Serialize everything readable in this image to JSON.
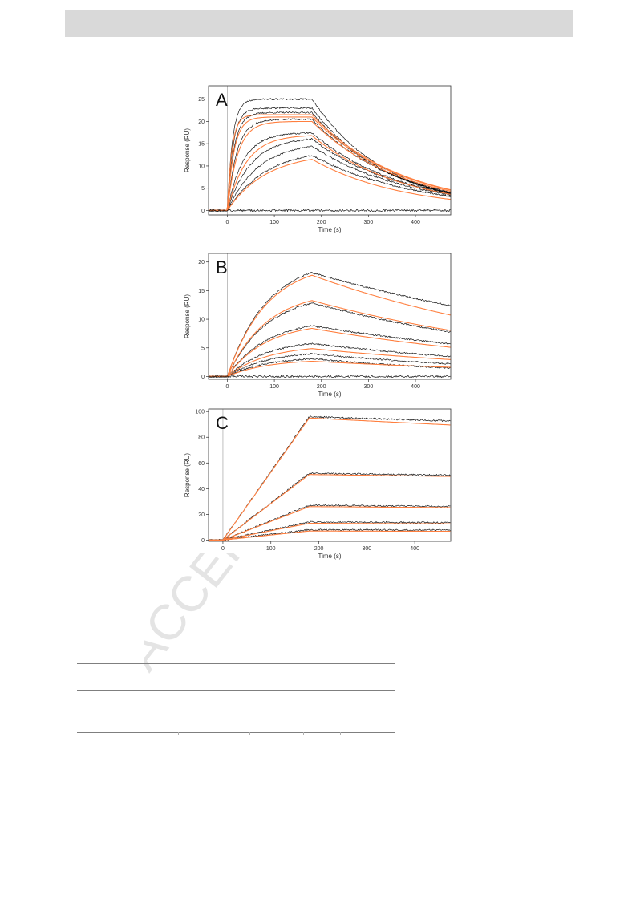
{
  "page": {
    "watermark_text": "ACCEPTED"
  },
  "chart_data": [
    {
      "type": "line",
      "panel_label": "A",
      "xlabel": "Time (s)",
      "ylabel": "Response (RU)",
      "xlim": [
        -40,
        475
      ],
      "ylim": [
        -1,
        28
      ],
      "xticks": [
        0,
        100,
        200,
        300,
        400
      ],
      "yticks": [
        0,
        5,
        10,
        15,
        20,
        25
      ],
      "grid": false,
      "association_end": 180,
      "series": [
        {
          "role": "observed",
          "color": "#000000",
          "plateau": 25,
          "kon_rate": 0.09,
          "koff_rate": 0.0063
        },
        {
          "role": "observed",
          "color": "#000000",
          "plateau": 23,
          "kon_rate": 0.08,
          "koff_rate": 0.0061
        },
        {
          "role": "observed",
          "color": "#000000",
          "plateau": 22,
          "kon_rate": 0.07,
          "koff_rate": 0.0059
        },
        {
          "role": "observed",
          "color": "#000000",
          "plateau": 20.5,
          "kon_rate": 0.05,
          "koff_rate": 0.0055
        },
        {
          "role": "observed",
          "color": "#000000",
          "plateau": 17.5,
          "kon_rate": 0.03,
          "koff_rate": 0.0052
        },
        {
          "role": "observed",
          "color": "#000000",
          "plateau": 16.5,
          "kon_rate": 0.02,
          "koff_rate": 0.005
        },
        {
          "role": "observed",
          "color": "#000000",
          "plateau": 15.5,
          "kon_rate": 0.015,
          "koff_rate": 0.0048
        },
        {
          "role": "observed",
          "color": "#000000",
          "plateau": 14,
          "kon_rate": 0.012,
          "koff_rate": 0.0046
        },
        {
          "role": "fit",
          "color": "#ff7f3f",
          "plateau": 21.5,
          "kon_rate": 0.1,
          "koff_rate": 0.0052
        },
        {
          "role": "fit",
          "color": "#ff7f3f",
          "plateau": 21,
          "kon_rate": 0.07,
          "koff_rate": 0.0052
        },
        {
          "role": "fit",
          "color": "#ff7f3f",
          "plateau": 20,
          "kon_rate": 0.045,
          "koff_rate": 0.0052
        },
        {
          "role": "fit",
          "color": "#ff7f3f",
          "plateau": 17,
          "kon_rate": 0.025,
          "koff_rate": 0.0052
        },
        {
          "role": "fit",
          "color": "#ff7f3f",
          "plateau": 13,
          "kon_rate": 0.012,
          "koff_rate": 0.0052
        },
        {
          "role": "baseline",
          "color": "#000000",
          "plateau": 0,
          "kon_rate": 0.05,
          "koff_rate": 0.01
        }
      ]
    },
    {
      "type": "line",
      "panel_label": "B",
      "xlabel": "Time (s)",
      "ylabel": "Response (RU)",
      "xlim": [
        -40,
        475
      ],
      "ylim": [
        -0.5,
        21.5
      ],
      "xticks": [
        0,
        100,
        200,
        300,
        400
      ],
      "yticks": [
        0,
        5,
        10,
        15,
        20
      ],
      "grid": false,
      "association_end": 180,
      "series": [
        {
          "role": "observed",
          "color": "#000000",
          "plateau": 20.5,
          "kon_rate": 0.012,
          "koff_rate": 0.0013
        },
        {
          "role": "observed",
          "color": "#000000",
          "plateau": 14.5,
          "kon_rate": 0.012,
          "koff_rate": 0.0017
        },
        {
          "role": "observed",
          "color": "#000000",
          "plateau": 10,
          "kon_rate": 0.012,
          "koff_rate": 0.0015
        },
        {
          "role": "observed",
          "color": "#000000",
          "plateau": 6.5,
          "kon_rate": 0.012,
          "koff_rate": 0.0017
        },
        {
          "role": "observed",
          "color": "#000000",
          "plateau": 4.5,
          "kon_rate": 0.012,
          "koff_rate": 0.002
        },
        {
          "role": "observed",
          "color": "#000000",
          "plateau": 3.5,
          "kon_rate": 0.012,
          "koff_rate": 0.0025
        },
        {
          "role": "fit",
          "color": "#ff7f3f",
          "plateau": 20,
          "kon_rate": 0.012,
          "koff_rate": 0.0017
        },
        {
          "role": "fit",
          "color": "#ff7f3f",
          "plateau": 15,
          "kon_rate": 0.012,
          "koff_rate": 0.0017
        },
        {
          "role": "fit",
          "color": "#ff7f3f",
          "plateau": 9.5,
          "kon_rate": 0.012,
          "koff_rate": 0.0017
        },
        {
          "role": "fit",
          "color": "#ff7f3f",
          "plateau": 5.5,
          "kon_rate": 0.012,
          "koff_rate": 0.0017
        },
        {
          "role": "fit",
          "color": "#ff7f3f",
          "plateau": 3,
          "kon_rate": 0.012,
          "koff_rate": 0.0017
        },
        {
          "role": "baseline",
          "color": "#000000",
          "plateau": 0,
          "kon_rate": 0.05,
          "koff_rate": 0.01
        }
      ]
    },
    {
      "type": "line",
      "panel_label": "C",
      "xlabel": "Time (s)",
      "ylabel": "Response (RU)",
      "xlim": [
        -30,
        475
      ],
      "ylim": [
        -1,
        102
      ],
      "xticks": [
        0,
        100,
        200,
        300,
        400
      ],
      "yticks": [
        0,
        20,
        40,
        60,
        80,
        100
      ],
      "grid": false,
      "association_end": 180,
      "series": [
        {
          "role": "observed",
          "color": "#000000",
          "plateau": 96,
          "kon_rate": 0.0,
          "koff_rate": 0.00012
        },
        {
          "role": "observed",
          "color": "#000000",
          "plateau": 52,
          "kon_rate": 0.0,
          "koff_rate": 0.0001
        },
        {
          "role": "observed",
          "color": "#000000",
          "plateau": 27,
          "kon_rate": 0.0,
          "koff_rate": 0.0001
        },
        {
          "role": "observed",
          "color": "#000000",
          "plateau": 14,
          "kon_rate": 0.0,
          "koff_rate": 0.0001
        },
        {
          "role": "observed",
          "color": "#000000",
          "plateau": 8,
          "kon_rate": 0.0,
          "koff_rate": 0.0001
        },
        {
          "role": "fit",
          "color": "#ff7f3f",
          "plateau": 95,
          "kon_rate": 0.0,
          "koff_rate": 0.0002
        },
        {
          "role": "fit",
          "color": "#ff7f3f",
          "plateau": 51,
          "kon_rate": 0.0,
          "koff_rate": 0.0001
        },
        {
          "role": "fit",
          "color": "#ff7f3f",
          "plateau": 26,
          "kon_rate": 0.0,
          "koff_rate": 0.0001
        },
        {
          "role": "fit",
          "color": "#ff7f3f",
          "plateau": 13,
          "kon_rate": 0.0,
          "koff_rate": 0.0001
        },
        {
          "role": "fit",
          "color": "#ff7f3f",
          "plateau": 7,
          "kon_rate": 0.0,
          "koff_rate": 0.0001
        }
      ]
    }
  ]
}
